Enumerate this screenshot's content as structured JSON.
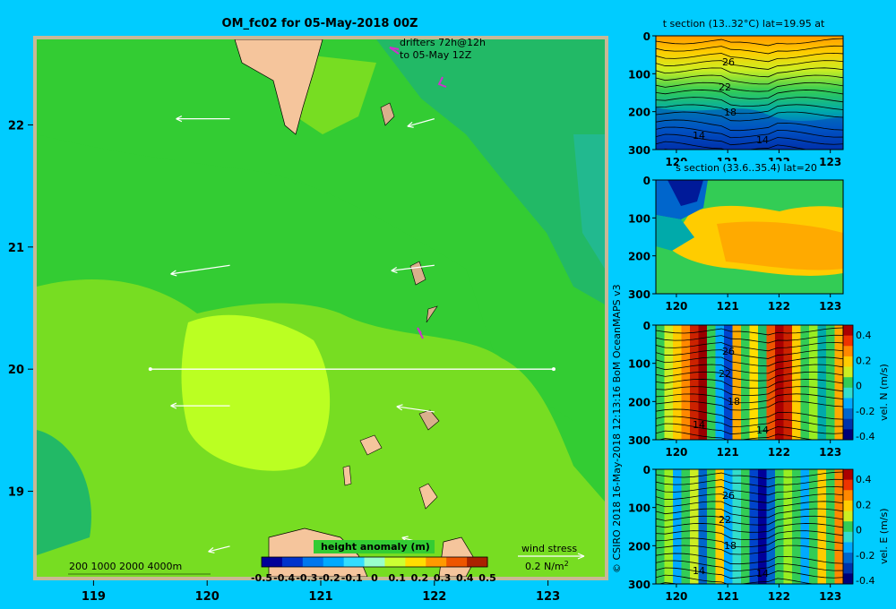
{
  "background": "#00ccff",
  "colors": {
    "frame": "#c9b896",
    "land": "#f5c59c",
    "sea_mid": "#33cc33",
    "sea_pale": "#99ee22",
    "sea_bright": "#ccff22",
    "sea_dark": "#22b966",
    "drifter": "#cc33cc"
  },
  "map": {
    "title": "OM_fc02 for 05-May-2018 00Z",
    "xlim": [
      118.5,
      123.5
    ],
    "ylim": [
      18.3,
      22.7
    ],
    "x_ticks": [
      "119",
      "120",
      "121",
      "122",
      "123"
    ],
    "y_ticks": [
      "19",
      "20",
      "21",
      "22"
    ],
    "drifters_line1": "drifters 72h@12h",
    "drifters_line2": "to 05-May 12Z",
    "bathymetry_legend": "200  1000  2000  4000m",
    "wind_label": "wind stress",
    "wind_scale": "0.2 N/m",
    "wind_scale_sup": "2",
    "section_lat": 20,
    "section_lon_range": [
      119.5,
      123.05
    ]
  },
  "colorbar": {
    "title": "height anomaly  (m)",
    "ticks": [
      "-0.5",
      "-0.4",
      "-0.3",
      "-0.2",
      "-0.1",
      "0",
      "0.1",
      "0.2",
      "0.3",
      "0.4",
      "0.5"
    ]
  },
  "credit": "© CSIRO 2018   16-May-2018 12:13:16 BoM OceanMAPS v3",
  "chart_data": [
    {
      "type": "heatmap",
      "title": "OM_fc02 for 05-May-2018 00Z",
      "variable": "height anomaly (m)",
      "xlim": [
        118.5,
        123.5
      ],
      "ylim": [
        18.3,
        22.7
      ],
      "clim": [
        -0.5,
        0.5
      ],
      "wind_vectors": [
        {
          "lon": 120.2,
          "lat": 22.05,
          "u": -0.5,
          "v": 0.0
        },
        {
          "lon": 122.0,
          "lat": 22.05,
          "u": -0.25,
          "v": -0.07
        },
        {
          "lon": 120.2,
          "lat": 20.85,
          "u": -0.55,
          "v": -0.08
        },
        {
          "lon": 122.0,
          "lat": 20.85,
          "u": -0.4,
          "v": -0.05
        },
        {
          "lon": 120.2,
          "lat": 19.7,
          "u": -0.55,
          "v": 0.0
        },
        {
          "lon": 122.0,
          "lat": 19.65,
          "u": -0.35,
          "v": 0.05
        },
        {
          "lon": 120.2,
          "lat": 18.55,
          "u": -0.2,
          "v": -0.05
        },
        {
          "lon": 122.0,
          "lat": 18.55,
          "u": -0.3,
          "v": 0.08
        }
      ]
    },
    {
      "type": "heatmap",
      "title": "t section (13..32°C) lat=19.95 at",
      "x_ticks": [
        "120",
        "121",
        "122",
        "123"
      ],
      "y_ticks": [
        "0",
        "100",
        "200",
        "300"
      ],
      "contour_labels": [
        "26",
        "22",
        "18",
        "14",
        "14"
      ]
    },
    {
      "type": "heatmap",
      "title": "s section (33.6..35.4) lat=20",
      "x_ticks": [
        "120",
        "121",
        "122",
        "123"
      ],
      "y_ticks": [
        "0",
        "100",
        "200",
        "300"
      ]
    },
    {
      "type": "heatmap",
      "title": "",
      "colorbar_label": "vel. N (m/s)",
      "clim": [
        -0.4,
        0.4
      ],
      "cbar_ticks": [
        "0.4",
        "0.2",
        "0",
        "-0.2",
        "-0.4"
      ],
      "x_ticks": [
        "120",
        "121",
        "122",
        "123"
      ],
      "y_ticks": [
        "0",
        "100",
        "200",
        "300"
      ],
      "contour_labels": [
        "26",
        "22",
        "18",
        "14",
        "14"
      ]
    },
    {
      "type": "heatmap",
      "title": "",
      "colorbar_label": "vel. E (m/s)",
      "clim": [
        -0.4,
        0.4
      ],
      "cbar_ticks": [
        "0.4",
        "0.2",
        "0",
        "-0.2",
        "-0.4"
      ],
      "x_ticks": [
        "120",
        "121",
        "122",
        "123"
      ],
      "y_ticks": [
        "0",
        "100",
        "200",
        "300"
      ],
      "contour_labels": [
        "26",
        "22",
        "18",
        "14",
        "14"
      ]
    }
  ]
}
